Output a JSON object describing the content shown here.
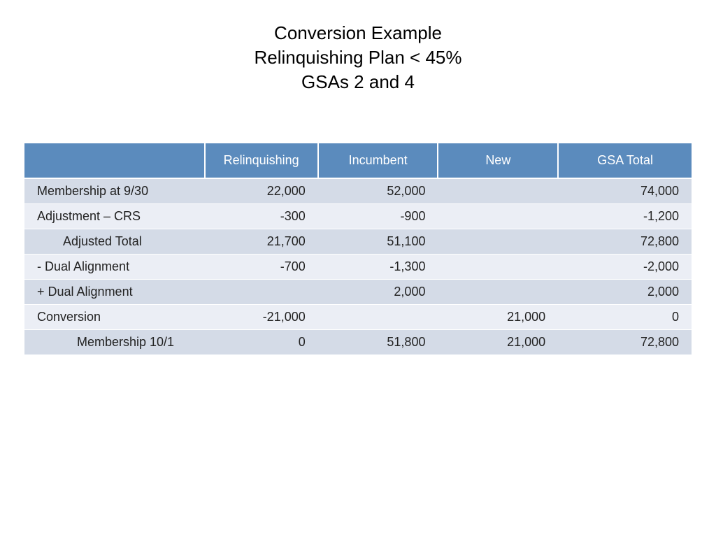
{
  "title": {
    "line1": "Conversion Example",
    "line2": "Relinquishing Plan < 45%",
    "line3": "GSAs 2 and 4"
  },
  "table": {
    "type": "table",
    "header_bg": "#5b8bbd",
    "header_fg": "#ffffff",
    "row_odd_bg": "#d4dbe7",
    "row_even_bg": "#ebeef5",
    "columns": [
      "",
      "Relinquishing",
      "Incumbent",
      "New",
      "GSA Total"
    ],
    "rows": [
      {
        "label": "Membership at 9/30",
        "indent": 0,
        "vals": [
          "22,000",
          "52,000",
          "",
          "74,000"
        ]
      },
      {
        "label": "Adjustment – CRS",
        "indent": 0,
        "vals": [
          "-300",
          "-900",
          "",
          "-1,200"
        ]
      },
      {
        "label": "Adjusted Total",
        "indent": 1,
        "vals": [
          "21,700",
          "51,100",
          "",
          "72,800"
        ]
      },
      {
        "label": "- Dual Alignment",
        "indent": 0,
        "vals": [
          "-700",
          "-1,300",
          "",
          "-2,000"
        ]
      },
      {
        "label": "+ Dual Alignment",
        "indent": 0,
        "vals": [
          "",
          "2,000",
          "",
          "2,000"
        ]
      },
      {
        "label": "Conversion",
        "indent": 0,
        "vals": [
          "-21,000",
          "",
          "21,000",
          "0"
        ]
      },
      {
        "label": "Membership 10/1",
        "indent": 2,
        "vals": [
          "0",
          "51,800",
          "21,000",
          "72,800"
        ]
      }
    ]
  }
}
